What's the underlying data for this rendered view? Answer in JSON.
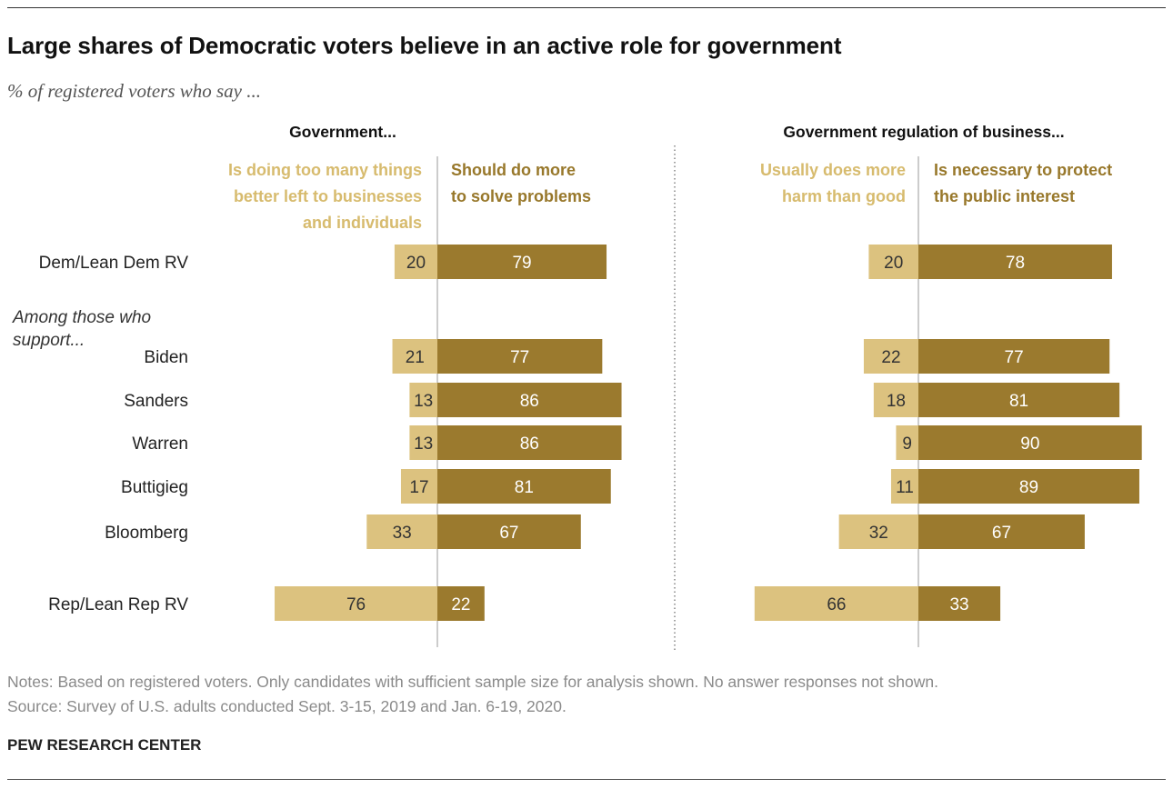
{
  "title": "Large shares of Democratic voters believe in an active role for government",
  "subtitle": "% of registered voters who say ...",
  "chart_data": {
    "type": "bar",
    "categories": [
      "Dem/Lean Dem RV",
      "Biden",
      "Sanders",
      "Warren",
      "Buttigieg",
      "Bloomberg",
      "Rep/Lean Rep RV"
    ],
    "group_label_lines": [
      "Among those who",
      "support..."
    ],
    "panels": [
      {
        "title": "Government...",
        "series": [
          {
            "name_lines": [
              "Is doing too many things",
              "better left to businesses",
              "and individuals"
            ],
            "values": [
              20,
              21,
              13,
              13,
              17,
              33,
              76
            ]
          },
          {
            "name_lines": [
              "Should do more",
              "to solve problems"
            ],
            "values": [
              79,
              77,
              86,
              86,
              81,
              67,
              22
            ]
          }
        ]
      },
      {
        "title": "Government regulation of business...",
        "series": [
          {
            "name_lines": [
              "Usually does more",
              "harm than good"
            ],
            "values": [
              20,
              22,
              18,
              9,
              11,
              32,
              66
            ]
          },
          {
            "name_lines": [
              "Is necessary to protect",
              "the public interest"
            ],
            "values": [
              78,
              77,
              81,
              90,
              89,
              67,
              33
            ]
          }
        ]
      }
    ]
  },
  "notes": "Notes: Based on registered voters. Only candidates with sufficient sample size for analysis shown. No answer responses not shown.",
  "source": "Source: Survey of U.S. adults conducted Sept. 3-15, 2019 and Jan. 6-19, 2020.",
  "brand": "PEW RESEARCH CENTER",
  "colors": {
    "dark_bar": "#9b7a2e",
    "light_bar": "#dcc27f",
    "dark_bar_label": "#ffffff",
    "light_bar_label": "#333333",
    "dark_header": "#98782b",
    "light_header": "#d7bb6e"
  }
}
